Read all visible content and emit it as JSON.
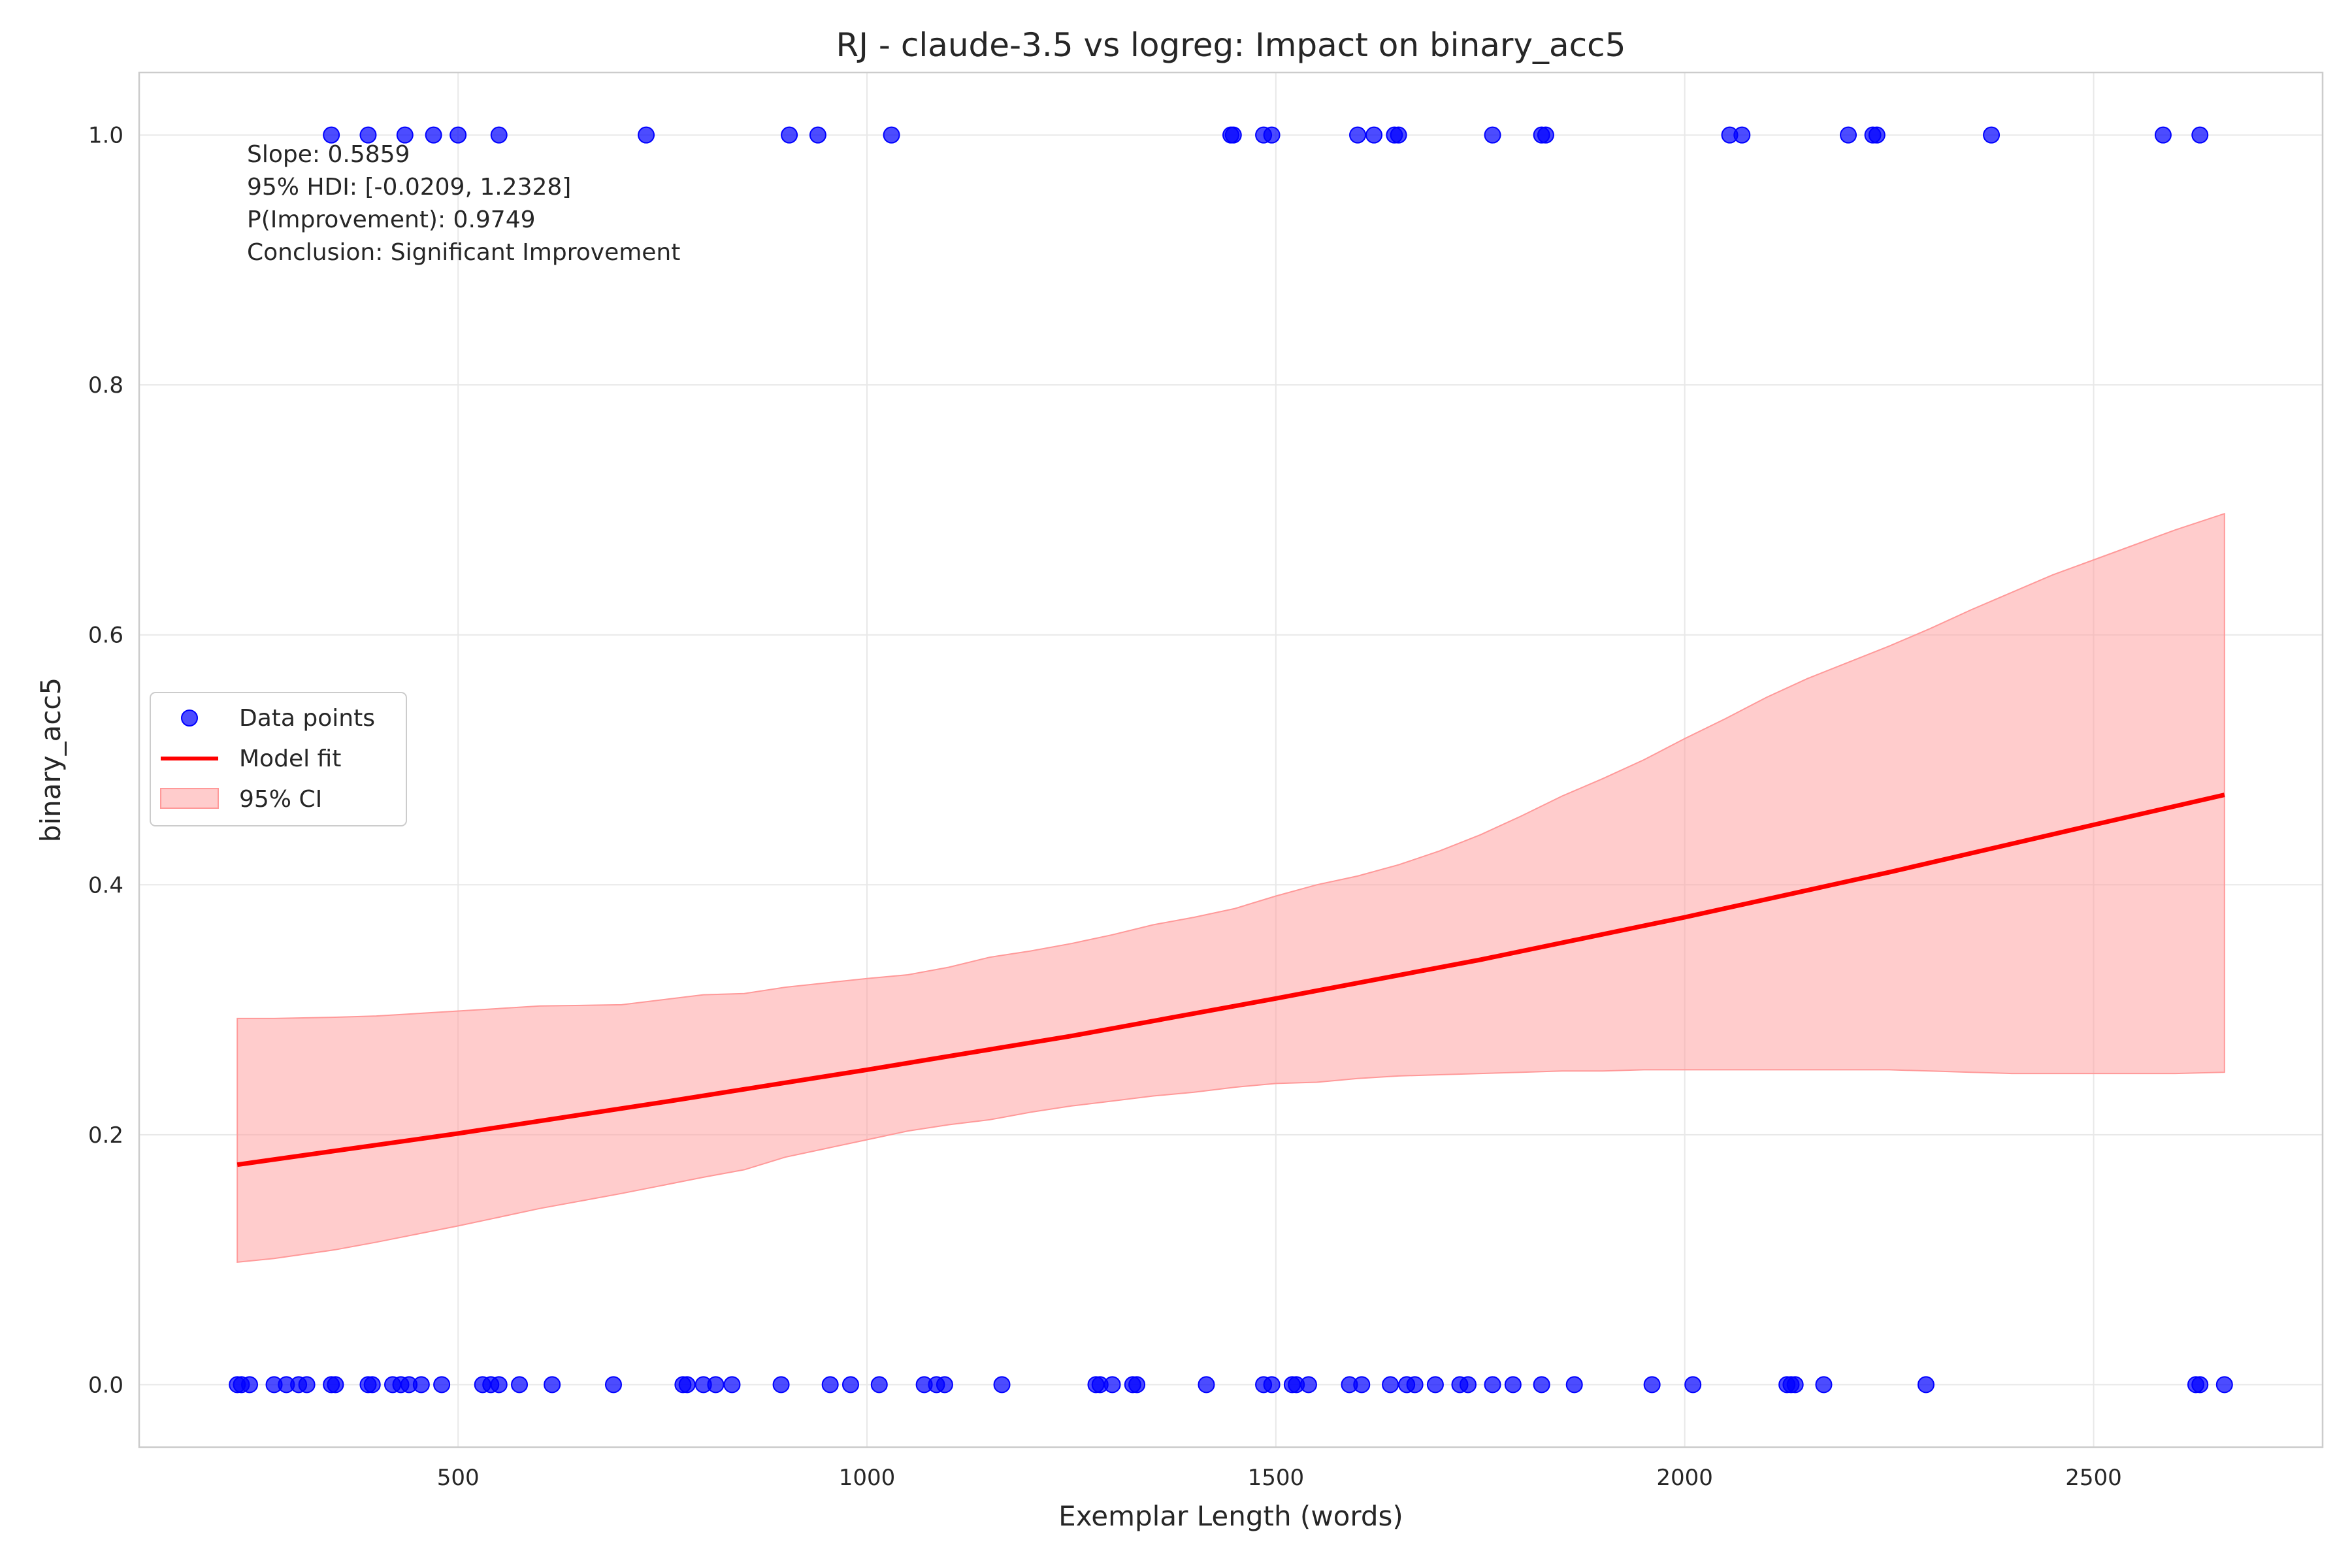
{
  "chart_data": {
    "type": "scatter",
    "title": "RJ - claude-3.5 vs logreg: Impact on binary_acc5",
    "xlabel": "Exemplar Length (words)",
    "ylabel": "binary_acc5",
    "xlim": [
      110,
      2780
    ],
    "ylim": [
      -0.05,
      1.05
    ],
    "xticks": [
      500,
      1000,
      1500,
      2000,
      2500
    ],
    "xtick_labels": [
      "500",
      "1000",
      "1500",
      "2000",
      "2500"
    ],
    "yticks": [
      0.0,
      0.2,
      0.4,
      0.6,
      0.8,
      1.0
    ],
    "ytick_labels": [
      "0.0",
      "0.2",
      "0.4",
      "0.6",
      "0.8",
      "1.0"
    ],
    "grid": true,
    "legend_position": "center-left",
    "legend": [
      {
        "label": "Data points",
        "kind": "marker",
        "color": "#0000ff"
      },
      {
        "label": "Model fit",
        "kind": "line",
        "color": "#ff0000"
      },
      {
        "label": "95% CI",
        "kind": "patch",
        "color": "#ffb3b3"
      }
    ],
    "annotation": [
      "Slope: 0.5859",
      "95% HDI: [-0.0209, 1.2328]",
      "P(Improvement): 0.9749",
      "Conclusion: Significant Improvement"
    ],
    "colors": {
      "points": "#0000ff",
      "fit": "#ff0000",
      "ci": "#ff9999"
    },
    "series": [
      {
        "name": "Data points",
        "kind": "scatter",
        "points_y1": [
          345,
          390,
          435,
          470,
          500,
          550,
          730,
          905,
          940,
          1030,
          1445,
          1448,
          1485,
          1495,
          1600,
          1620,
          1645,
          1650,
          1765,
          1825,
          1830,
          2055,
          2070,
          2200,
          2230,
          2235,
          2375,
          2585,
          2630
        ],
        "points_y0": [
          230,
          235,
          245,
          275,
          290,
          305,
          315,
          345,
          350,
          390,
          395,
          420,
          430,
          440,
          455,
          480,
          530,
          540,
          550,
          575,
          615,
          690,
          775,
          780,
          800,
          815,
          835,
          895,
          955,
          980,
          1015,
          1070,
          1085,
          1095,
          1165,
          1280,
          1285,
          1300,
          1325,
          1330,
          1415,
          1485,
          1495,
          1520,
          1525,
          1540,
          1590,
          1605,
          1640,
          1660,
          1670,
          1695,
          1725,
          1735,
          1765,
          1790,
          1825,
          1865,
          1960,
          2010,
          2125,
          2130,
          2135,
          2170,
          2295,
          2625,
          2630,
          2660
        ]
      },
      {
        "name": "Model fit",
        "kind": "line",
        "x": [
          230,
          500,
          750,
          1000,
          1250,
          1500,
          1750,
          2000,
          2250,
          2500,
          2660
        ],
        "y": [
          0.176,
          0.201,
          0.226,
          0.252,
          0.279,
          0.309,
          0.34,
          0.374,
          0.41,
          0.448,
          0.472
        ]
      },
      {
        "name": "95% CI",
        "kind": "band",
        "x": [
          230,
          275,
          350,
          400,
          500,
          600,
          700,
          800,
          850,
          900,
          1000,
          1050,
          1100,
          1150,
          1200,
          1250,
          1300,
          1350,
          1400,
          1450,
          1500,
          1550,
          1600,
          1650,
          1700,
          1750,
          1800,
          1850,
          1900,
          1950,
          2000,
          2050,
          2100,
          2150,
          2200,
          2250,
          2300,
          2350,
          2400,
          2450,
          2500,
          2550,
          2600,
          2660
        ],
        "upper": [
          0.293,
          0.293,
          0.294,
          0.295,
          0.299,
          0.303,
          0.304,
          0.312,
          0.313,
          0.318,
          0.325,
          0.328,
          0.334,
          0.342,
          0.347,
          0.353,
          0.36,
          0.368,
          0.374,
          0.381,
          0.391,
          0.4,
          0.407,
          0.416,
          0.427,
          0.44,
          0.455,
          0.471,
          0.485,
          0.5,
          0.517,
          0.533,
          0.55,
          0.565,
          0.578,
          0.591,
          0.605,
          0.62,
          0.634,
          0.648,
          0.66,
          0.672,
          0.684,
          0.697
        ],
        "lower": [
          0.098,
          0.101,
          0.108,
          0.114,
          0.127,
          0.141,
          0.153,
          0.166,
          0.172,
          0.182,
          0.196,
          0.203,
          0.208,
          0.212,
          0.218,
          0.223,
          0.227,
          0.231,
          0.234,
          0.238,
          0.241,
          0.242,
          0.245,
          0.247,
          0.248,
          0.249,
          0.25,
          0.251,
          0.251,
          0.252,
          0.252,
          0.252,
          0.252,
          0.252,
          0.252,
          0.252,
          0.251,
          0.25,
          0.249,
          0.249,
          0.249,
          0.249,
          0.249,
          0.25
        ]
      }
    ]
  }
}
